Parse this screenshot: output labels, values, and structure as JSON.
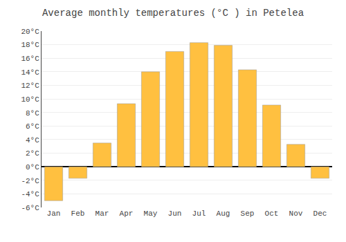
{
  "chart_data": {
    "type": "bar",
    "title": "Average monthly temperatures (°C ) in Petelea",
    "categories": [
      "Jan",
      "Feb",
      "Mar",
      "Apr",
      "May",
      "Jun",
      "Jul",
      "Aug",
      "Sep",
      "Oct",
      "Nov",
      "Dec"
    ],
    "values": [
      -5.0,
      -1.7,
      3.5,
      9.3,
      14.0,
      17.0,
      18.3,
      17.9,
      14.3,
      9.1,
      3.3,
      -1.7
    ],
    "color": "#FFC040",
    "ylim": [
      -6,
      20
    ],
    "yticks": [
      {
        "value": -6,
        "label": "-6°C"
      },
      {
        "value": -4,
        "label": "-4°C"
      },
      {
        "value": -2,
        "label": "-2°C"
      },
      {
        "value": 0,
        "label": "0°C"
      },
      {
        "value": 2,
        "label": "2°C"
      },
      {
        "value": 4,
        "label": "4°C"
      },
      {
        "value": 6,
        "label": "6°C"
      },
      {
        "value": 8,
        "label": "8°C"
      },
      {
        "value": 10,
        "label": "10°C"
      },
      {
        "value": 12,
        "label": "12°C"
      },
      {
        "value": 14,
        "label": "14°C"
      },
      {
        "value": 16,
        "label": "16°C"
      },
      {
        "value": 18,
        "label": "18°C"
      },
      {
        "value": 20,
        "label": "20°C"
      }
    ],
    "grid": true
  }
}
